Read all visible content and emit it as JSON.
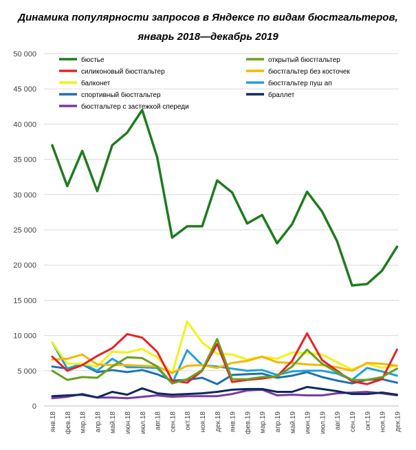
{
  "chart_data": {
    "type": "line",
    "title_line1": "Динамика популярности запросов в Яндексе по видам бюстгальтеров,",
    "title_line2": "январь 2018—декабрь 2019",
    "xlabel": "",
    "ylabel": "",
    "ylim": [
      0,
      50000
    ],
    "y_ticks": [
      "0",
      "5 000",
      "10 000",
      "15 000",
      "20 000",
      "25 000",
      "30 000",
      "35 000",
      "40 000",
      "45 000",
      "50 000"
    ],
    "grid": true,
    "legend_position": "top",
    "categories": [
      "янв.18",
      "фев.18",
      "мар.18",
      "апр.18",
      "май.18",
      "июн.18",
      "июл.18",
      "авг.18",
      "сен.18",
      "окт.18",
      "ноя.18",
      "дек.18",
      "янв.19",
      "фев.19",
      "мар.19",
      "апр.19",
      "май.19",
      "июн.19",
      "июл.19",
      "авг.19",
      "сен.19",
      "окт.19",
      "ноя.19",
      "дек.19"
    ],
    "series": [
      {
        "name": "бюстье",
        "color": "#1e7b1e",
        "values": [
          37000,
          31200,
          36200,
          30500,
          37000,
          38800,
          42000,
          35300,
          23900,
          25500,
          25500,
          32000,
          30300,
          25900,
          27100,
          23100,
          25800,
          30400,
          27600,
          23400,
          17100,
          17300,
          19200,
          22600
        ]
      },
      {
        "name": "открытый бюстгальтер",
        "color": "#6a9e1f",
        "values": [
          5000,
          3700,
          4100,
          4000,
          5600,
          6900,
          6800,
          5600,
          3200,
          3800,
          5100,
          9500,
          3800,
          3800,
          4100,
          4200,
          5600,
          8000,
          6000,
          4800,
          3700,
          3700,
          4100,
          5300
        ]
      },
      {
        "name": "силиконовый бюстгальтер",
        "color": "#e62222",
        "values": [
          7000,
          5000,
          5800,
          7100,
          8200,
          10200,
          9700,
          7700,
          3600,
          3300,
          5000,
          8800,
          3400,
          3700,
          3900,
          4200,
          6400,
          10300,
          6500,
          5000,
          3500,
          3100,
          3800,
          8000
        ]
      },
      {
        "name": "бюстгальтер без косточек",
        "color": "#f2b705",
        "values": [
          6600,
          6700,
          7300,
          5900,
          5800,
          5800,
          5700,
          5600,
          4700,
          5700,
          5800,
          5400,
          6100,
          6400,
          7000,
          6200,
          6100,
          5900,
          5800,
          5500,
          5000,
          6100,
          6000,
          5700
        ]
      },
      {
        "name": "балконет",
        "color": "#f2f212",
        "values": [
          9000,
          6000,
          6000,
          5600,
          7700,
          7600,
          8100,
          6900,
          4600,
          12000,
          9000,
          7400,
          7300,
          6600,
          7000,
          6700,
          7600,
          7500,
          7300,
          6200,
          5200,
          6000,
          5400,
          5700
        ]
      },
      {
        "name": "бюстгальтер пуш ап",
        "color": "#20a0d8",
        "values": [
          9000,
          5300,
          6000,
          5000,
          6700,
          5500,
          5500,
          5400,
          3200,
          7900,
          5800,
          5600,
          5300,
          5000,
          5100,
          4400,
          4900,
          5000,
          5000,
          4600,
          3700,
          5400,
          4900,
          4300
        ]
      },
      {
        "name": "спортивный бюстгальтер",
        "color": "#1e6fb0",
        "values": [
          5600,
          5300,
          5900,
          4800,
          5100,
          4800,
          5100,
          4500,
          3600,
          3700,
          4000,
          3100,
          4400,
          4500,
          4600,
          4000,
          4300,
          4800,
          4100,
          3600,
          3200,
          3700,
          3800,
          3300
        ]
      },
      {
        "name": "браллет",
        "color": "#0d2a5c",
        "values": [
          1400,
          1500,
          1600,
          1200,
          2000,
          1600,
          2500,
          1800,
          1600,
          1700,
          1800,
          2000,
          2300,
          2400,
          2400,
          2000,
          2000,
          2700,
          2400,
          2100,
          1700,
          1700,
          1900,
          1600
        ]
      },
      {
        "name": "бюстгальтер с застежкой спереди",
        "color": "#7a3aa0",
        "values": [
          1100,
          1300,
          1700,
          1200,
          1200,
          1100,
          1300,
          1500,
          1300,
          1400,
          1400,
          1400,
          1700,
          2200,
          2300,
          1500,
          1600,
          1500,
          1500,
          1800,
          1900,
          2000,
          1800,
          1500
        ]
      }
    ]
  }
}
